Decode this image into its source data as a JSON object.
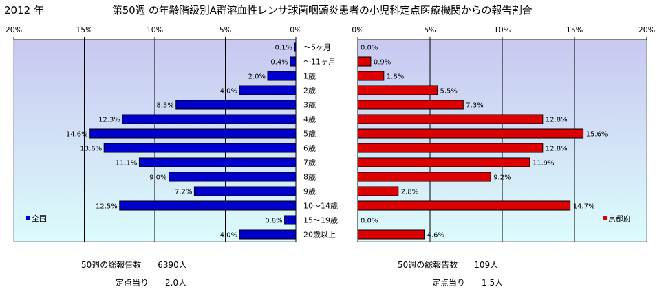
{
  "header": {
    "year": "2012 年",
    "title": "第50週 の年齢階級別A群溶血性レンサ球菌咽頭炎患者の小児科定点医療機関からの報告割合"
  },
  "colors": {
    "national_bar": "#0000cc",
    "kyoto_bar": "#dd0000",
    "plot_bg_top": "#c8c8f0",
    "plot_bg_bottom": "#dcfcfc"
  },
  "chart_data": [
    {
      "type": "bar",
      "orientation": "horizontal",
      "direction": "right-to-left",
      "legend": "全国",
      "legend_position": "bottom-left",
      "xlim": [
        0,
        20
      ],
      "xticks": [
        "20%",
        "15%",
        "10%",
        "5%",
        "0%"
      ],
      "grid": true,
      "categories": [
        "～5ヶ月",
        "～11ヶ月",
        "1歳",
        "2歳",
        "3歳",
        "4歳",
        "5歳",
        "6歳",
        "7歳",
        "8歳",
        "9歳",
        "10～14歳",
        "15～19歳",
        "20歳以上"
      ],
      "values": [
        0.1,
        0.4,
        2.0,
        4.0,
        8.5,
        12.3,
        14.6,
        13.6,
        11.1,
        9.0,
        7.2,
        12.5,
        0.8,
        4.0
      ],
      "labels": [
        "0.1%",
        "0.4%",
        "2.0%",
        "4.0%",
        "8.5%",
        "12.3%",
        "14.6%",
        "13.6%",
        "11.1%",
        "9.0%",
        "7.2%",
        "12.5%",
        "0.8%",
        "4.0%"
      ]
    },
    {
      "type": "bar",
      "orientation": "horizontal",
      "direction": "left-to-right",
      "legend": "京都府",
      "legend_position": "bottom-right",
      "xlim": [
        0,
        20
      ],
      "xticks": [
        "0%",
        "5%",
        "10%",
        "15%",
        "20%"
      ],
      "grid": true,
      "categories": [
        "～5ヶ月",
        "～11ヶ月",
        "1歳",
        "2歳",
        "3歳",
        "4歳",
        "5歳",
        "6歳",
        "7歳",
        "8歳",
        "9歳",
        "10～14歳",
        "15～19歳",
        "20歳以上"
      ],
      "values": [
        0.0,
        0.9,
        1.8,
        5.5,
        7.3,
        12.8,
        15.6,
        12.8,
        11.9,
        9.2,
        2.8,
        14.7,
        0.0,
        4.6
      ],
      "labels": [
        "0.0%",
        "0.9%",
        "1.8%",
        "5.5%",
        "7.3%",
        "12.8%",
        "15.6%",
        "12.8%",
        "11.9%",
        "9.2%",
        "2.8%",
        "14.7%",
        "0.0%",
        "4.6%"
      ]
    }
  ],
  "summary": {
    "national": {
      "total_line": "50週の総報告数　　6390人",
      "per_site_line": "定点当り　　2.0人"
    },
    "kyoto": {
      "total_line": "50週の総報告数　　109人",
      "per_site_line": "定点当り　　1.5人"
    }
  }
}
